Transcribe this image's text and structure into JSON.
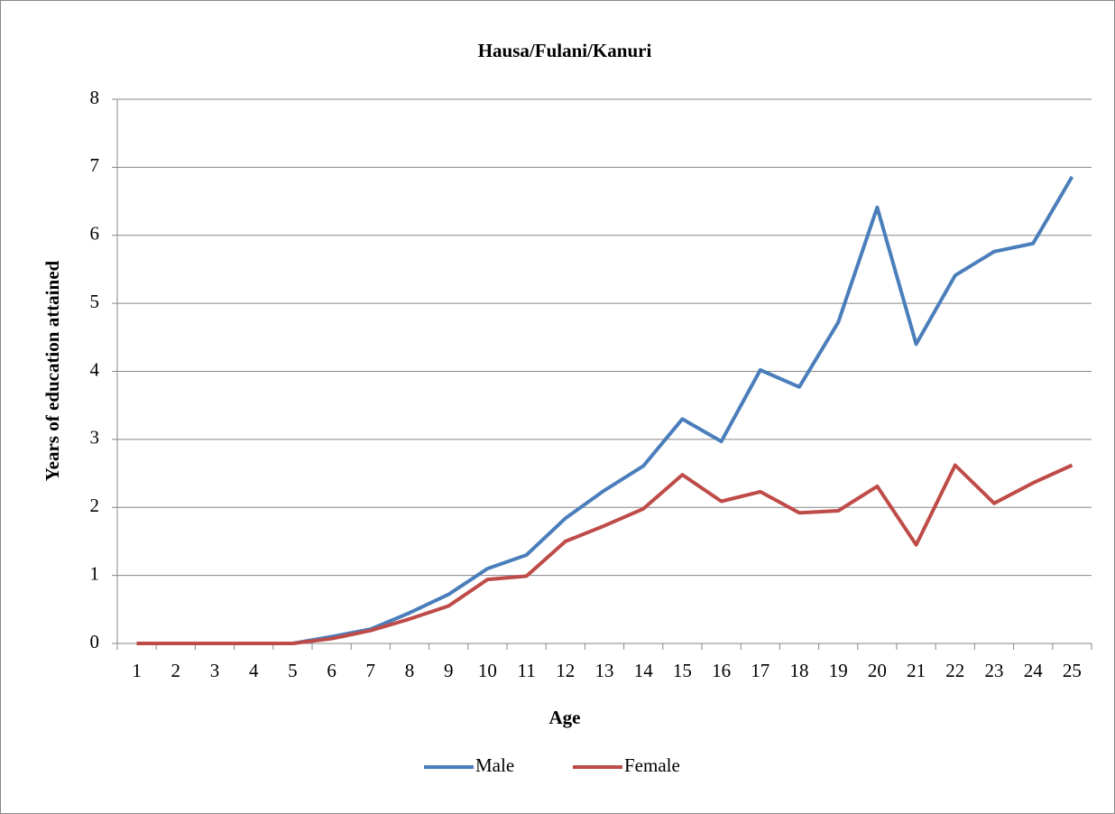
{
  "chart_data": {
    "type": "line",
    "title": "Hausa/Fulani/Kanuri",
    "x_label": "Age",
    "y_label": "Years of education attained",
    "categories": [
      1,
      2,
      3,
      4,
      5,
      6,
      7,
      8,
      9,
      10,
      11,
      12,
      13,
      14,
      15,
      16,
      17,
      18,
      19,
      20,
      21,
      22,
      23,
      24,
      25
    ],
    "series": [
      {
        "name": "Male",
        "color": "#4a7ebb",
        "values": [
          0,
          0,
          0,
          0,
          0,
          0.1,
          0.21,
          0.45,
          0.72,
          1.1,
          1.3,
          1.84,
          2.25,
          2.61,
          3.3,
          2.97,
          4.02,
          3.77,
          4.72,
          6.41,
          4.4,
          5.41,
          5.76,
          5.88,
          6.86
        ]
      },
      {
        "name": "Female",
        "color": "#be4b48",
        "values": [
          0,
          0,
          0,
          0,
          0,
          0.07,
          0.19,
          0.36,
          0.55,
          0.94,
          0.99,
          1.5,
          1.73,
          1.98,
          2.48,
          2.09,
          2.23,
          1.92,
          1.95,
          2.31,
          1.45,
          2.62,
          2.06,
          2.36,
          2.62
        ]
      }
    ],
    "ylim": [
      0,
      8
    ],
    "yticks": [
      0,
      1,
      2,
      3,
      4,
      5,
      6,
      7,
      8
    ],
    "grid": true,
    "legend": "bottom"
  }
}
